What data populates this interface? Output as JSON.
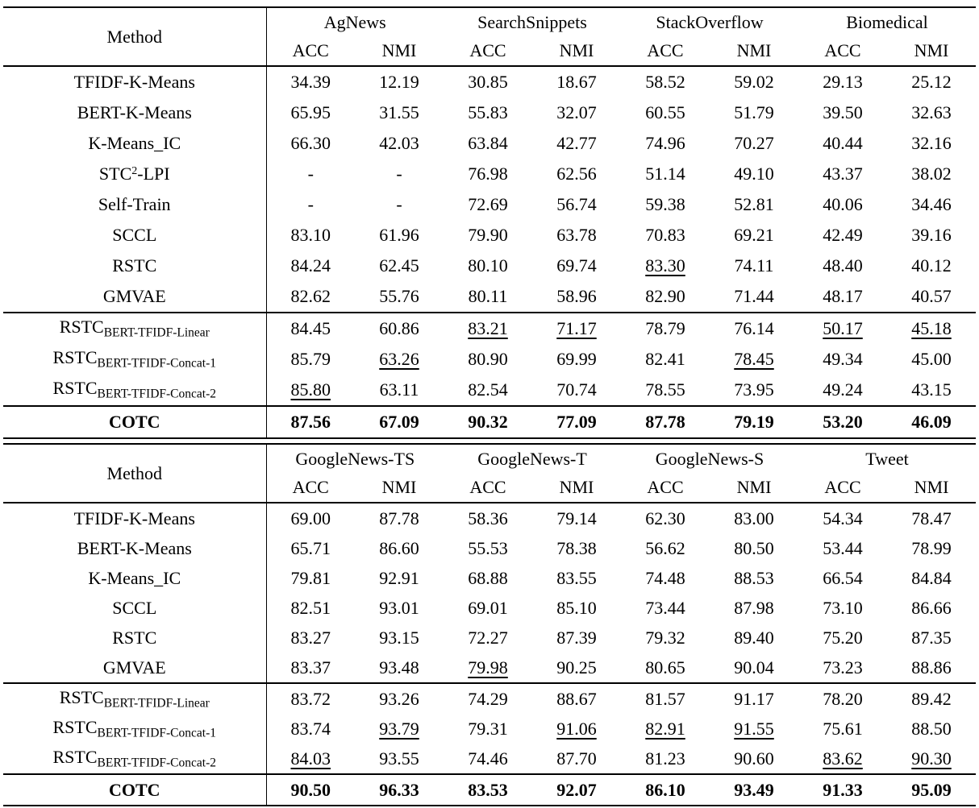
{
  "page": {
    "background": "#ffffff",
    "text_color": "#000000",
    "rule_color": "#000000"
  },
  "tables": [
    {
      "data_name": "results-table-top",
      "method_header": "Method",
      "metrics": [
        "ACC",
        "NMI"
      ],
      "groups": [
        "AgNews",
        "SearchSnippets",
        "StackOverflow",
        "Biomedical"
      ],
      "rows": [
        {
          "method": "TFIDF-K-Means",
          "cells": [
            "34.39",
            "12.19",
            "30.85",
            "18.67",
            "58.52",
            "59.02",
            "29.13",
            "25.12"
          ]
        },
        {
          "method": "BERT-K-Means",
          "cells": [
            "65.95",
            "31.55",
            "55.83",
            "32.07",
            "60.55",
            "51.79",
            "39.50",
            "32.63"
          ]
        },
        {
          "method": "K-Means_IC",
          "cells": [
            "66.30",
            "42.03",
            "63.84",
            "42.77",
            "74.96",
            "70.27",
            "40.44",
            "32.16"
          ]
        },
        {
          "method_parts": [
            {
              "t": "STC"
            },
            {
              "t": "2",
              "s": "sup"
            },
            {
              "t": "-LPI"
            }
          ],
          "cells": [
            "-",
            "-",
            "76.98",
            "62.56",
            "51.14",
            "49.10",
            "43.37",
            "38.02"
          ]
        },
        {
          "method": "Self-Train",
          "cells": [
            "-",
            "-",
            "72.69",
            "56.74",
            "59.38",
            "52.81",
            "40.06",
            "34.46"
          ]
        },
        {
          "method": "SCCL",
          "cells": [
            "83.10",
            "61.96",
            "79.90",
            "63.78",
            "70.83",
            "69.21",
            "42.49",
            "39.16"
          ]
        },
        {
          "method": "RSTC",
          "cells": [
            "84.24",
            "62.45",
            "80.10",
            "69.74",
            {
              "v": "83.30",
              "u": true
            },
            "74.11",
            "48.40",
            "40.12"
          ]
        },
        {
          "method": "GMVAE",
          "cells": [
            "82.62",
            "55.76",
            "80.11",
            "58.96",
            "82.90",
            "71.44",
            "48.17",
            "40.57"
          ]
        },
        {
          "method_parts": [
            {
              "t": "RSTC"
            },
            {
              "t": "BERT-TFIDF-Linear",
              "s": "sub"
            }
          ],
          "rule_above": true,
          "cells": [
            "84.45",
            "60.86",
            {
              "v": "83.21",
              "u": true
            },
            {
              "v": "71.17",
              "u": true
            },
            "78.79",
            "76.14",
            {
              "v": "50.17",
              "u": true
            },
            {
              "v": "45.18",
              "u": true
            }
          ]
        },
        {
          "method_parts": [
            {
              "t": "RSTC"
            },
            {
              "t": "BERT-TFIDF-Concat-1",
              "s": "sub"
            }
          ],
          "cells": [
            "85.79",
            {
              "v": "63.26",
              "u": true
            },
            "80.90",
            "69.99",
            "82.41",
            {
              "v": "78.45",
              "u": true
            },
            "49.34",
            "45.00"
          ]
        },
        {
          "method_parts": [
            {
              "t": "RSTC"
            },
            {
              "t": "BERT-TFIDF-Concat-2",
              "s": "sub"
            }
          ],
          "cells": [
            {
              "v": "85.80",
              "u": true
            },
            "63.11",
            "82.54",
            "70.74",
            "78.55",
            "73.95",
            "49.24",
            "43.15"
          ]
        },
        {
          "method": "COTC",
          "bold": true,
          "rule_above": true,
          "cells": [
            "87.56",
            "67.09",
            "90.32",
            "77.09",
            "87.78",
            "79.19",
            "53.20",
            "46.09"
          ]
        }
      ]
    },
    {
      "data_name": "results-table-bottom",
      "method_header": "Method",
      "metrics": [
        "ACC",
        "NMI"
      ],
      "groups": [
        "GoogleNews-TS",
        "GoogleNews-T",
        "GoogleNews-S",
        "Tweet"
      ],
      "rows": [
        {
          "method": "TFIDF-K-Means",
          "cells": [
            "69.00",
            "87.78",
            "58.36",
            "79.14",
            "62.30",
            "83.00",
            "54.34",
            "78.47"
          ]
        },
        {
          "method": "BERT-K-Means",
          "cells": [
            "65.71",
            "86.60",
            "55.53",
            "78.38",
            "56.62",
            "80.50",
            "53.44",
            "78.99"
          ]
        },
        {
          "method": "K-Means_IC",
          "cells": [
            "79.81",
            "92.91",
            "68.88",
            "83.55",
            "74.48",
            "88.53",
            "66.54",
            "84.84"
          ]
        },
        {
          "method": "SCCL",
          "cells": [
            "82.51",
            "93.01",
            "69.01",
            "85.10",
            "73.44",
            "87.98",
            "73.10",
            "86.66"
          ]
        },
        {
          "method": "RSTC",
          "cells": [
            "83.27",
            "93.15",
            "72.27",
            "87.39",
            "79.32",
            "89.40",
            "75.20",
            "87.35"
          ]
        },
        {
          "method": "GMVAE",
          "cells": [
            "83.37",
            "93.48",
            {
              "v": "79.98",
              "u": true
            },
            "90.25",
            "80.65",
            "90.04",
            "73.23",
            "88.86"
          ]
        },
        {
          "method_parts": [
            {
              "t": "RSTC"
            },
            {
              "t": "BERT-TFIDF-Linear",
              "s": "sub"
            }
          ],
          "rule_above": true,
          "cells": [
            "83.72",
            "93.26",
            "74.29",
            "88.67",
            "81.57",
            "91.17",
            "78.20",
            "89.42"
          ]
        },
        {
          "method_parts": [
            {
              "t": "RSTC"
            },
            {
              "t": "BERT-TFIDF-Concat-1",
              "s": "sub"
            }
          ],
          "cells": [
            "83.74",
            {
              "v": "93.79",
              "u": true
            },
            "79.31",
            {
              "v": "91.06",
              "u": true
            },
            {
              "v": "82.91",
              "u": true
            },
            {
              "v": "91.55",
              "u": true
            },
            "75.61",
            "88.50"
          ]
        },
        {
          "method_parts": [
            {
              "t": "RSTC"
            },
            {
              "t": "BERT-TFIDF-Concat-2",
              "s": "sub"
            }
          ],
          "cells": [
            {
              "v": "84.03",
              "u": true
            },
            "93.55",
            "74.46",
            "87.70",
            "81.23",
            "90.60",
            {
              "v": "83.62",
              "u": true
            },
            {
              "v": "90.30",
              "u": true
            }
          ]
        },
        {
          "method": "COTC",
          "bold": true,
          "rule_above": true,
          "cells": [
            "90.50",
            "96.33",
            "83.53",
            "92.07",
            "86.10",
            "93.49",
            "91.33",
            "95.09"
          ]
        }
      ]
    }
  ]
}
